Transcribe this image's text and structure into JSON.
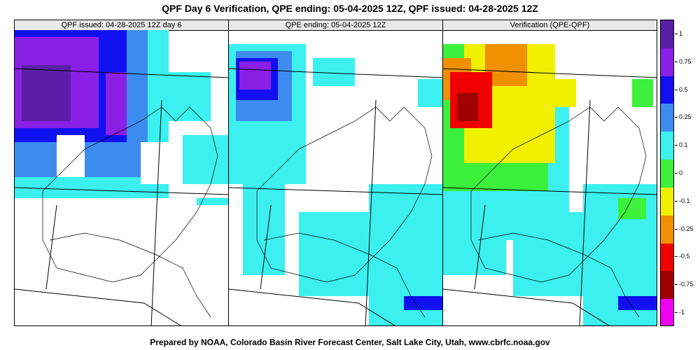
{
  "title": "QPF Day 6 Verification, QPE ending: 05-04-2025 12Z, QPF issued: 04-28-2025 12Z",
  "footer": "Prepared by NOAA, Colorado Basin River Forecast Center, Salt Lake City, Utah, www.cbrfc.noaa.gov",
  "panels": [
    {
      "label": "QPF issued: 04-28-2025 12Z day 6"
    },
    {
      "label": "QPE ending: 05-04-2025 12Z"
    },
    {
      "label": "Verification (QPE-QPF)"
    }
  ],
  "colorbar": {
    "segments": [
      {
        "color": "#5a1fa6"
      },
      {
        "color": "#8a1fe6"
      },
      {
        "color": "#1010f0"
      },
      {
        "color": "#3c8cf0"
      },
      {
        "color": "#3cf0f0"
      },
      {
        "color": "#3cf03c"
      },
      {
        "color": "#f0f000"
      },
      {
        "color": "#f09000"
      },
      {
        "color": "#f00000"
      },
      {
        "color": "#a00000"
      },
      {
        "color": "#f000f0"
      }
    ],
    "ticks": [
      "1",
      "0.75",
      "0.5",
      "0.25",
      "0.1",
      "0",
      "-0.1",
      "-0.25",
      "-0.5",
      "-0.75",
      "-1"
    ]
  }
}
